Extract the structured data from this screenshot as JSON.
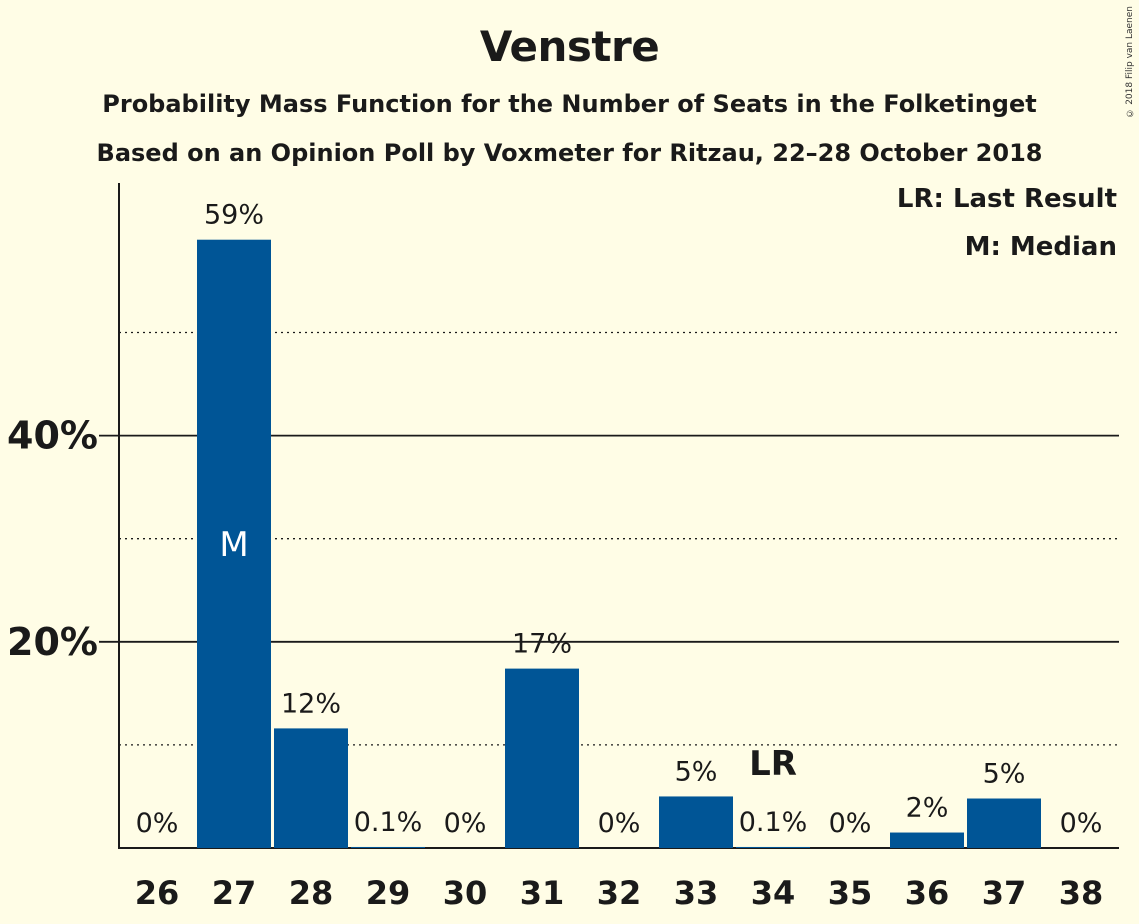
{
  "header": {
    "title": "Venstre",
    "subtitle1": "Probability Mass Function for the Number of Seats in the Folketinget",
    "subtitle2": "Based on an Opinion Poll by Voxmeter for Ritzau, 22–28 October 2018",
    "copyright": "© 2018 Filip van Laenen"
  },
  "legend": {
    "last_result": "LR: Last Result",
    "median": "M: Median"
  },
  "colors": {
    "bar": "#005596",
    "background": "#fffde6"
  },
  "chart_data": {
    "type": "bar",
    "categories": [
      "26",
      "27",
      "28",
      "29",
      "30",
      "31",
      "32",
      "33",
      "34",
      "35",
      "36",
      "37",
      "38"
    ],
    "values": [
      0,
      59,
      12,
      0.1,
      0,
      17,
      0,
      5,
      0.1,
      0,
      2,
      5,
      0
    ],
    "bar_values": [
      0,
      59,
      11.6,
      0.1,
      0,
      17.4,
      0,
      5.0,
      0.1,
      0,
      1.5,
      4.8,
      0
    ],
    "data_labels": [
      "0%",
      "59%",
      "12%",
      "0.1%",
      "0%",
      "17%",
      "0%",
      "5%",
      "0.1%",
      "0%",
      "2%",
      "5%",
      "0%"
    ],
    "ylim": [
      0,
      64.5
    ],
    "yticks": [
      {
        "value": 20,
        "label": "20%"
      },
      {
        "value": 40,
        "label": "40%"
      }
    ],
    "minor_gridlines": [
      10,
      30,
      50
    ],
    "median_category": "27",
    "median_label": "M",
    "last_result_category": "34",
    "last_result_label": "LR"
  }
}
